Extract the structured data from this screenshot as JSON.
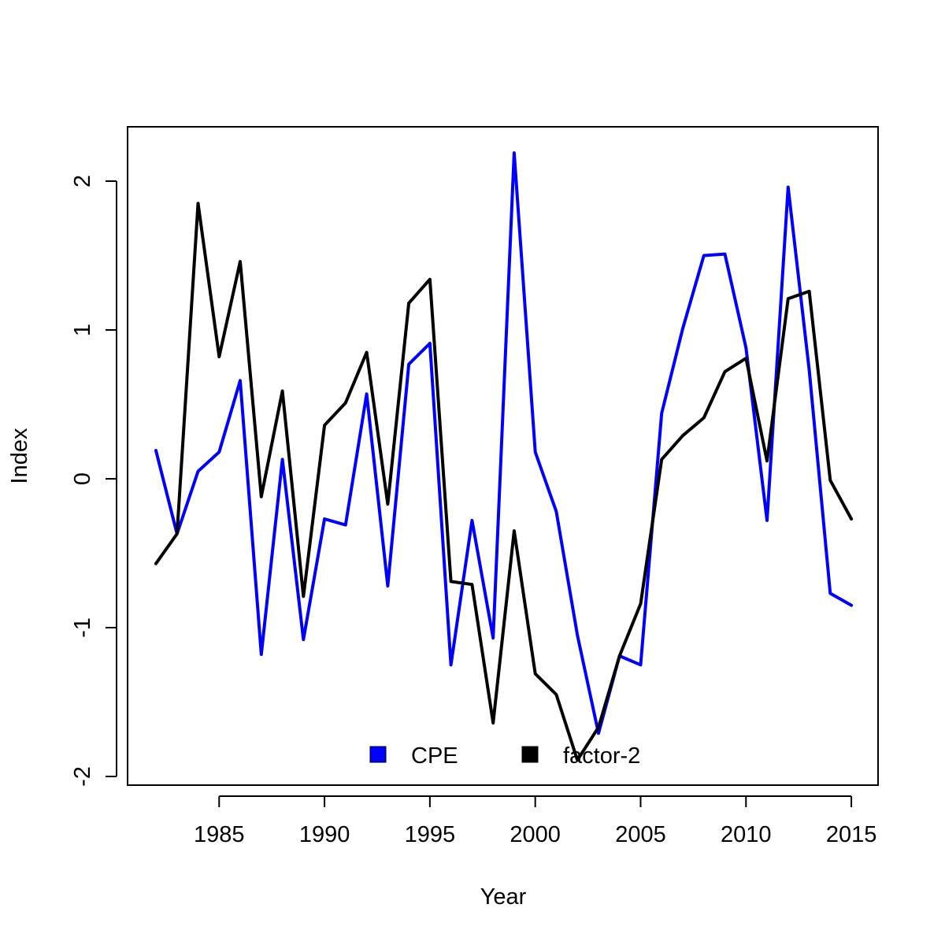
{
  "chart_data": {
    "type": "line",
    "title": "",
    "xlabel": "Year",
    "ylabel": "Index",
    "xlim": [
      1982,
      2015
    ],
    "ylim": [
      -2,
      2.2
    ],
    "x_ticks": [
      "1985",
      "1990",
      "1995",
      "2000",
      "2005",
      "2010",
      "2015"
    ],
    "y_ticks": [
      "-2",
      "-1",
      "0",
      "1",
      "2"
    ],
    "x": [
      1982,
      1983,
      1984,
      1985,
      1986,
      1987,
      1988,
      1989,
      1990,
      1991,
      1992,
      1993,
      1994,
      1995,
      1996,
      1997,
      1998,
      1999,
      2000,
      2001,
      2002,
      2003,
      2004,
      2005,
      2006,
      2007,
      2008,
      2009,
      2010,
      2011,
      2012,
      2013,
      2014,
      2015
    ],
    "series": [
      {
        "name": "CPE",
        "color": "#0000ff",
        "values": [
          0.19,
          -0.37,
          0.05,
          0.18,
          0.66,
          -1.18,
          0.13,
          -1.08,
          -0.27,
          -0.31,
          0.57,
          -0.72,
          0.77,
          0.91,
          -1.25,
          -0.28,
          -1.07,
          2.19,
          0.18,
          -0.22,
          -1.05,
          -1.71,
          -1.19,
          -1.25,
          0.44,
          1.01,
          1.5,
          1.51,
          0.88,
          -0.28,
          1.96,
          0.73,
          -0.77,
          -0.85
        ]
      },
      {
        "name": "factor-2",
        "color": "#000000",
        "values": [
          -0.57,
          -0.37,
          1.85,
          0.82,
          1.46,
          -0.12,
          0.59,
          -0.79,
          0.36,
          0.51,
          0.85,
          -0.17,
          1.18,
          1.34,
          -0.69,
          -0.71,
          -1.64,
          -0.35,
          -1.31,
          -1.45,
          -1.89,
          -1.67,
          -1.19,
          -0.84,
          0.13,
          0.29,
          0.41,
          0.72,
          0.81,
          0.12,
          1.21,
          1.26,
          -0.01,
          -0.27
        ]
      }
    ],
    "legend": {
      "placement": "bottom-center",
      "entries": [
        {
          "label": "CPE",
          "color": "#0000ff"
        },
        {
          "label": "factor-2",
          "color": "#000000"
        }
      ]
    },
    "grid": false
  }
}
